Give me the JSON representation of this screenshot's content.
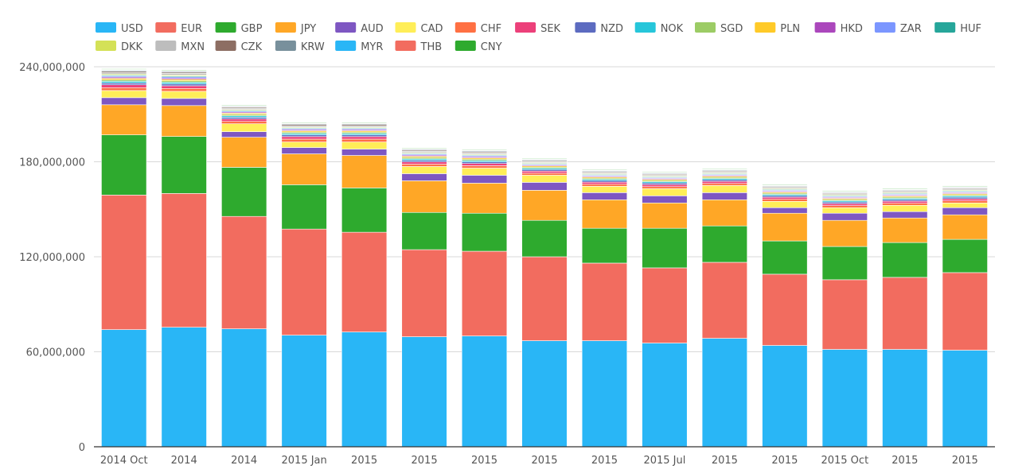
{
  "chart_data": {
    "type": "bar",
    "stacked": true,
    "categories": [
      "2014 Oct",
      "2014",
      "2014",
      "2015 Jan",
      "2015",
      "2015",
      "2015",
      "2015",
      "2015",
      "2015 Jul",
      "2015",
      "2015",
      "2015 Oct",
      "2015",
      "2015"
    ],
    "ylim": [
      0,
      240000000
    ],
    "yticks": [
      "0",
      "60,000,000",
      "120,000,000",
      "180,000,000",
      "240,000,000"
    ],
    "ytick_values": [
      0,
      60000000,
      120000000,
      180000000,
      240000000
    ],
    "grid": true,
    "legend_position": "top",
    "series": [
      {
        "name": "USD",
        "color": "#29b6f6",
        "values": [
          74000000,
          75500000,
          74500000,
          70500000,
          72500000,
          69500000,
          70000000,
          67000000,
          67000000,
          65500000,
          68500000,
          64000000,
          61500000,
          61500000,
          61000000
        ]
      },
      {
        "name": "EUR",
        "color": "#f26c5f",
        "values": [
          85000000,
          84500000,
          71000000,
          67000000,
          63000000,
          55000000,
          53500000,
          53000000,
          49000000,
          47500000,
          48000000,
          45000000,
          44000000,
          45500000,
          49000000
        ]
      },
      {
        "name": "GBP",
        "color": "#2eaa2e",
        "values": [
          38000000,
          36000000,
          31000000,
          28000000,
          28000000,
          23500000,
          24000000,
          23000000,
          22000000,
          25000000,
          23000000,
          21000000,
          21000000,
          22000000,
          21000000
        ]
      },
      {
        "name": "JPY",
        "color": "#ffa726",
        "values": [
          19000000,
          19500000,
          19000000,
          19500000,
          20500000,
          20000000,
          19000000,
          19000000,
          18000000,
          16000000,
          16500000,
          17500000,
          16500000,
          15500000,
          15500000
        ]
      },
      {
        "name": "AUD",
        "color": "#7e57c2",
        "values": [
          4500000,
          4500000,
          3500000,
          4000000,
          4000000,
          4500000,
          5000000,
          5000000,
          4500000,
          4500000,
          4500000,
          3500000,
          4500000,
          4000000,
          4500000
        ]
      },
      {
        "name": "CAD",
        "color": "#ffee58",
        "values": [
          4500000,
          4500000,
          5000000,
          3500000,
          4500000,
          4500000,
          4500000,
          4500000,
          4000000,
          4500000,
          4500000,
          4000000,
          3500000,
          4000000,
          3000000
        ]
      },
      {
        "name": "CHF",
        "color": "#ff7043",
        "values": [
          1800000,
          1800000,
          1500000,
          1800000,
          1800000,
          1500000,
          1500000,
          1300000,
          1300000,
          1300000,
          1300000,
          1300000,
          1300000,
          1300000,
          1300000
        ]
      },
      {
        "name": "SEK",
        "color": "#ec407a",
        "values": [
          1800000,
          1700000,
          1500000,
          1600000,
          1600000,
          1400000,
          1400000,
          1300000,
          1300000,
          1300000,
          1300000,
          1300000,
          1300000,
          1300000,
          1300000
        ]
      },
      {
        "name": "NZD",
        "color": "#5c6bc0",
        "values": [
          1200000,
          1200000,
          1100000,
          1100000,
          1100000,
          1000000,
          1000000,
          1000000,
          1000000,
          1000000,
          1000000,
          1000000,
          1000000,
          1000000,
          1000000
        ]
      },
      {
        "name": "NOK",
        "color": "#26c6da",
        "values": [
          1000000,
          1000000,
          900000,
          900000,
          900000,
          900000,
          900000,
          800000,
          800000,
          800000,
          800000,
          800000,
          800000,
          800000,
          800000
        ]
      },
      {
        "name": "SGD",
        "color": "#9ccc65",
        "values": [
          1000000,
          1000000,
          900000,
          900000,
          900000,
          900000,
          900000,
          800000,
          800000,
          800000,
          800000,
          800000,
          800000,
          800000,
          800000
        ]
      },
      {
        "name": "PLN",
        "color": "#ffca28",
        "values": [
          900000,
          900000,
          800000,
          800000,
          800000,
          800000,
          800000,
          700000,
          700000,
          700000,
          700000,
          700000,
          700000,
          700000,
          700000
        ]
      },
      {
        "name": "HKD",
        "color": "#ab47bc",
        "values": [
          800000,
          800000,
          700000,
          700000,
          700000,
          700000,
          700000,
          600000,
          600000,
          600000,
          600000,
          600000,
          600000,
          600000,
          600000
        ]
      },
      {
        "name": "ZAR",
        "color": "#7b96ff",
        "values": [
          700000,
          700000,
          600000,
          600000,
          600000,
          600000,
          600000,
          500000,
          500000,
          500000,
          500000,
          500000,
          500000,
          500000,
          500000
        ]
      },
      {
        "name": "HUF",
        "color": "#26a69a",
        "values": [
          600000,
          600000,
          500000,
          500000,
          500000,
          500000,
          500000,
          500000,
          500000,
          500000,
          500000,
          500000,
          500000,
          500000,
          500000
        ]
      },
      {
        "name": "DKK",
        "color": "#d4e157",
        "values": [
          600000,
          600000,
          500000,
          500000,
          500000,
          500000,
          500000,
          500000,
          500000,
          500000,
          500000,
          500000,
          500000,
          500000,
          500000
        ]
      },
      {
        "name": "MXN",
        "color": "#bdbdbd",
        "values": [
          1000000,
          1000000,
          800000,
          900000,
          900000,
          800000,
          800000,
          700000,
          700000,
          700000,
          700000,
          700000,
          700000,
          700000,
          700000
        ]
      },
      {
        "name": "CZK",
        "color": "#8d6e63",
        "values": [
          700000,
          700000,
          600000,
          700000,
          700000,
          600000,
          600000,
          500000,
          500000,
          500000,
          500000,
          500000,
          500000,
          500000,
          500000
        ]
      },
      {
        "name": "KRW",
        "color": "#78909c",
        "values": [
          600000,
          600000,
          500000,
          500000,
          500000,
          500000,
          500000,
          500000,
          500000,
          500000,
          500000,
          500000,
          500000,
          500000,
          500000
        ]
      },
      {
        "name": "MYR",
        "color": "#29b6f6",
        "values": [
          300000,
          300000,
          300000,
          300000,
          300000,
          300000,
          300000,
          300000,
          300000,
          300000,
          300000,
          300000,
          300000,
          300000,
          300000
        ]
      },
      {
        "name": "THB",
        "color": "#f26c5f",
        "values": [
          300000,
          300000,
          300000,
          300000,
          300000,
          300000,
          300000,
          300000,
          300000,
          300000,
          300000,
          300000,
          300000,
          300000,
          300000
        ]
      },
      {
        "name": "CNY",
        "color": "#2eaa2e",
        "values": [
          400000,
          400000,
          400000,
          400000,
          400000,
          400000,
          400000,
          400000,
          400000,
          400000,
          400000,
          400000,
          400000,
          400000,
          400000
        ]
      }
    ]
  }
}
